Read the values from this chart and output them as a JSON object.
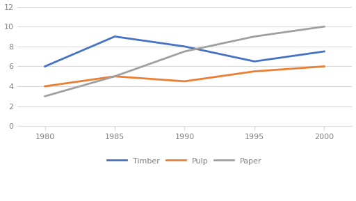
{
  "years": [
    1980,
    1985,
    1990,
    1995,
    2000
  ],
  "timber": [
    6,
    9,
    8,
    6.5,
    7.5
  ],
  "pulp": [
    4,
    5,
    4.5,
    5.5,
    6
  ],
  "paper": [
    3,
    5,
    7.5,
    9,
    10
  ],
  "timber_color": "#4472c4",
  "pulp_color": "#ed7d31",
  "paper_color": "#a0a0a0",
  "ylim": [
    0,
    12
  ],
  "yticks": [
    0,
    2,
    4,
    6,
    8,
    10,
    12
  ],
  "xticks": [
    1980,
    1985,
    1990,
    1995,
    2000
  ],
  "linewidth": 2.0,
  "legend_labels": [
    "Timber",
    "Pulp",
    "Paper"
  ],
  "background_color": "#ffffff",
  "grid_color": "#d9d9d9",
  "tick_label_color": "#808080",
  "spine_color": "#d9d9d9"
}
